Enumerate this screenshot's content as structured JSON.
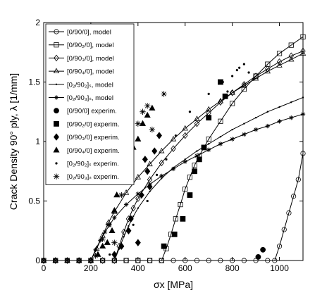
{
  "chart_data": {
    "type": "scatter",
    "xlabel": "σx [MPa]",
    "ylabel": "Crack Density 90° ply, λ [1/mm]",
    "xlim": [
      0,
      1100
    ],
    "ylim": [
      0,
      2
    ],
    "xticks": [
      0,
      200,
      400,
      600,
      800,
      1000
    ],
    "yticks": [
      0,
      0.5,
      1,
      1.5,
      2
    ],
    "xtick_labels": [
      "0",
      "200",
      "400",
      "600",
      "800",
      "1000"
    ],
    "ytick_labels": [
      "0",
      "0.5",
      "1",
      "1.5",
      "2"
    ],
    "grid": false,
    "legend_position": "top-left",
    "series": [
      {
        "name": "[0/90/0], model",
        "style": "model",
        "marker": "circle",
        "x": [
          0,
          50,
          100,
          150,
          200,
          250,
          300,
          350,
          400,
          450,
          500,
          550,
          600,
          650,
          700,
          750,
          800,
          850,
          900,
          950,
          980,
          1000,
          1020,
          1040,
          1060,
          1080,
          1100
        ],
        "y": [
          0,
          0,
          0,
          0,
          0,
          0,
          0,
          0,
          0,
          0,
          0,
          0,
          0,
          0,
          0,
          0,
          0,
          0,
          0,
          0,
          0,
          0.12,
          0.26,
          0.4,
          0.54,
          0.68,
          0.9
        ]
      },
      {
        "name": "[0/90₂/0], model",
        "style": "model",
        "marker": "square",
        "x": [
          0,
          50,
          100,
          150,
          200,
          250,
          300,
          350,
          400,
          450,
          500,
          520,
          540,
          560,
          580,
          600,
          620,
          640,
          660,
          700,
          750,
          800,
          850,
          900,
          950,
          1000,
          1050,
          1100
        ],
        "y": [
          0,
          0,
          0,
          0,
          0,
          0,
          0,
          0,
          0,
          0,
          0,
          0.1,
          0.22,
          0.35,
          0.47,
          0.6,
          0.7,
          0.8,
          0.88,
          1.02,
          1.17,
          1.32,
          1.44,
          1.55,
          1.65,
          1.74,
          1.81,
          1.88
        ]
      },
      {
        "name": "[0/90₃/0], model",
        "style": "model",
        "marker": "diamond",
        "x": [
          0,
          50,
          100,
          150,
          200,
          250,
          300,
          320,
          340,
          360,
          380,
          400,
          450,
          500,
          550,
          600,
          650,
          700,
          750,
          800,
          850,
          900,
          950,
          1000,
          1050,
          1100
        ],
        "y": [
          0,
          0,
          0,
          0,
          0,
          0,
          0,
          0.12,
          0.24,
          0.35,
          0.44,
          0.52,
          0.68,
          0.82,
          0.94,
          1.05,
          1.15,
          1.24,
          1.33,
          1.41,
          1.48,
          1.55,
          1.61,
          1.67,
          1.72,
          1.76
        ]
      },
      {
        "name": "[0/90₄/0], model",
        "style": "model",
        "marker": "triangle",
        "x": [
          0,
          50,
          100,
          150,
          200,
          225,
          250,
          275,
          300,
          350,
          400,
          450,
          500,
          550,
          600,
          650,
          700,
          750,
          800,
          850,
          900,
          950,
          1000,
          1050,
          1100
        ],
        "y": [
          0,
          0,
          0,
          0,
          0,
          0.1,
          0.21,
          0.32,
          0.41,
          0.57,
          0.7,
          0.81,
          0.92,
          1.02,
          1.11,
          1.19,
          1.27,
          1.34,
          1.41,
          1.47,
          1.53,
          1.59,
          1.64,
          1.69,
          1.74
        ]
      },
      {
        "name": "[0₂/90₂]ₛ, model",
        "style": "model",
        "marker": "dot",
        "x": [
          0,
          50,
          100,
          150,
          200,
          250,
          300,
          320,
          340,
          360,
          380,
          400,
          450,
          500,
          550,
          600,
          650,
          700,
          750,
          800,
          850,
          900,
          950,
          1000,
          1050,
          1100
        ],
        "y": [
          0,
          0,
          0,
          0,
          0,
          0,
          0,
          0.1,
          0.2,
          0.29,
          0.37,
          0.44,
          0.58,
          0.69,
          0.78,
          0.85,
          0.92,
          0.98,
          1.04,
          1.1,
          1.15,
          1.2,
          1.25,
          1.29,
          1.33,
          1.37
        ]
      },
      {
        "name": "[0₂/90₃]ₛ, model",
        "style": "model",
        "marker": "star",
        "x": [
          0,
          50,
          100,
          150,
          200,
          220,
          240,
          260,
          280,
          300,
          350,
          400,
          450,
          500,
          550,
          600,
          650,
          700,
          750,
          800,
          850,
          900,
          950,
          1000,
          1050,
          1100
        ],
        "y": [
          0,
          0,
          0,
          0,
          0,
          0.09,
          0.17,
          0.24,
          0.3,
          0.36,
          0.47,
          0.56,
          0.64,
          0.71,
          0.77,
          0.83,
          0.88,
          0.93,
          0.98,
          1.02,
          1.06,
          1.1,
          1.13,
          1.17,
          1.2,
          1.23
        ]
      },
      {
        "name": "[0/90/0] experim.",
        "style": "experim",
        "marker": "circle",
        "x": [
          910,
          930
        ],
        "y": [
          0.03,
          0.09
        ]
      },
      {
        "name": "[0/90₂/0] experim.",
        "style": "experim",
        "marker": "square",
        "x": [
          510,
          555,
          590,
          620,
          640,
          660,
          680,
          700,
          750,
          770
        ],
        "y": [
          0.12,
          0.22,
          0.35,
          0.55,
          0.75,
          0.85,
          0.95,
          1.2,
          1.5,
          1.38
        ]
      },
      {
        "name": "[0/90₃/0] experim.",
        "style": "experim",
        "marker": "diamond",
        "x": [
          300,
          330,
          360,
          370,
          400,
          415,
          430,
          440,
          450,
          470,
          490
        ],
        "y": [
          0.05,
          0.12,
          0.25,
          0.35,
          0.15,
          0.55,
          0.85,
          0.75,
          0.62,
          0.92,
          1.05
        ]
      },
      {
        "name": "[0/90₄/0] experim.",
        "style": "experim",
        "marker": "triangle",
        "x": [
          230,
          250,
          270,
          290,
          300,
          310,
          320,
          340,
          360,
          380,
          400,
          420,
          440,
          460
        ],
        "y": [
          0.05,
          0.12,
          0.15,
          0.25,
          0.42,
          0.55,
          0.75,
          0.9,
          0.85,
          0.95,
          1.02,
          1.15,
          1.22,
          1.28
        ]
      },
      {
        "name": "[0₂/90₂]ₛ experim.",
        "style": "experim",
        "marker": "dot",
        "x": [
          280,
          320,
          380,
          440,
          480,
          520,
          560,
          620,
          700,
          760,
          780,
          800,
          820,
          830,
          850,
          870,
          890
        ],
        "y": [
          0.05,
          0.1,
          0.3,
          0.5,
          0.72,
          0.85,
          1.05,
          1.25,
          1.4,
          1.5,
          1.42,
          1.55,
          1.6,
          1.62,
          1.65,
          1.58,
          1.52
        ]
      },
      {
        "name": "[0₂/90₃]ₛ experim.",
        "style": "experim",
        "marker": "star",
        "x": [
          220,
          250,
          275,
          300,
          330,
          350,
          370,
          400,
          420,
          440,
          460,
          510
        ],
        "y": [
          0.04,
          0.18,
          0.3,
          0.15,
          0.55,
          0.75,
          0.95,
          1.15,
          1.25,
          1.3,
          1.1,
          1.4
        ]
      }
    ]
  }
}
